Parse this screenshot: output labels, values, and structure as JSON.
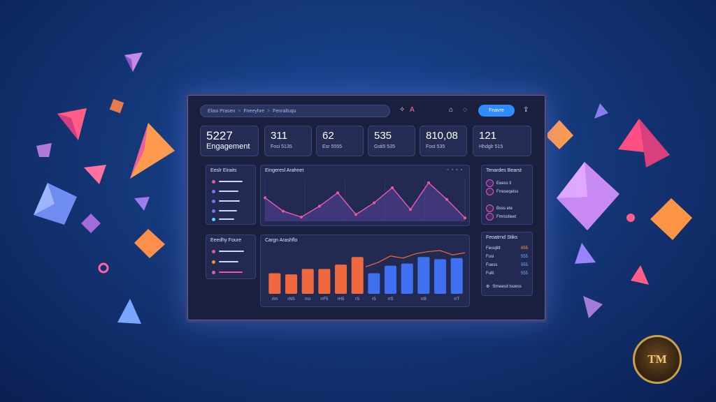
{
  "topbar": {
    "breadcrumb": [
      "Elasi Prasen",
      "Fneeyhre",
      "Fenraltuqu"
    ],
    "sep": ">",
    "notif_text": "A",
    "action_button": "Fnavre"
  },
  "stats": [
    {
      "value": "5227",
      "label": "Engagement"
    },
    {
      "value": "311",
      "label": "Fosi 5135"
    },
    {
      "value": "62",
      "label": "Esr 5555"
    },
    {
      "value": "535",
      "label": "Gsti5 535"
    },
    {
      "value": "810,08",
      "label": "Fost 535"
    },
    {
      "value": "121",
      "label": "Hhdglr 515"
    }
  ],
  "left_panel_top": {
    "title": "Eeslr Eiraits",
    "colors": [
      "#e85aa8",
      "#6f78ff",
      "#6f78ff",
      "#6f78ff",
      "#5fd4ff"
    ]
  },
  "left_panel_bottom": {
    "title": "Eeedhy Foure",
    "colors": [
      "#e85aa8",
      "#ff8a3d",
      "#e85aa8"
    ]
  },
  "line_chart_title": "Eingeresl Arahnet",
  "bar_chart_title": "Cargn Arashflo",
  "right_panel_top": {
    "title": "Tenardes Bearst",
    "items": [
      "Eeess ll",
      "Frreseqelss",
      "Bsss ete",
      "Fmrsstieet"
    ]
  },
  "right_panel_bottom": {
    "title": "Feoatrnd Stiks",
    "rows": [
      {
        "label": "Fiesqlitt",
        "value": "855"
      },
      {
        "label": "Fusi",
        "value": "555"
      },
      {
        "label": "Fuess",
        "value": "555"
      },
      {
        "label": "Fulli",
        "value": "555"
      }
    ],
    "footer": "Srneesd tsoess"
  },
  "logo_text": "TM",
  "chart_data": [
    {
      "type": "line",
      "title": "Eingeresl Arahnet",
      "x": [
        0,
        1,
        2,
        3,
        4,
        5,
        6,
        7,
        8,
        9,
        10,
        11
      ],
      "values": [
        28,
        12,
        5,
        18,
        34,
        8,
        22,
        40,
        14,
        46,
        26,
        4
      ],
      "ylim": [
        0,
        50
      ],
      "color": "#e85aa8"
    },
    {
      "type": "bar",
      "title": "Cargn Arashflo",
      "categories": [
        "rm",
        "rM",
        "rm",
        "rrH",
        "rrH",
        "rrt",
        "rn",
        "rrN",
        "rrC",
        "rrB",
        "rr",
        "rrT"
      ],
      "tick_labels": [
        "r/m",
        "rNS",
        "rns",
        "rrF5",
        "rH5",
        "rS",
        "r5",
        "rrS",
        "",
        "rrB",
        "",
        "rrT"
      ],
      "values": [
        38,
        36,
        46,
        46,
        54,
        68,
        38,
        52,
        56,
        68,
        64,
        66
      ],
      "colors": [
        "#f0683d",
        "#f0683d",
        "#f0683d",
        "#f0683d",
        "#f0683d",
        "#f0683d",
        "#3f70f0",
        "#3f70f0",
        "#3f70f0",
        "#3f70f0",
        "#3f70f0",
        "#3f70f0"
      ],
      "ylim": [
        0,
        80
      ],
      "overlay_line": [
        50,
        58,
        70,
        66,
        74,
        78,
        80,
        72,
        76
      ],
      "overlay_color": "#f0683d"
    }
  ]
}
